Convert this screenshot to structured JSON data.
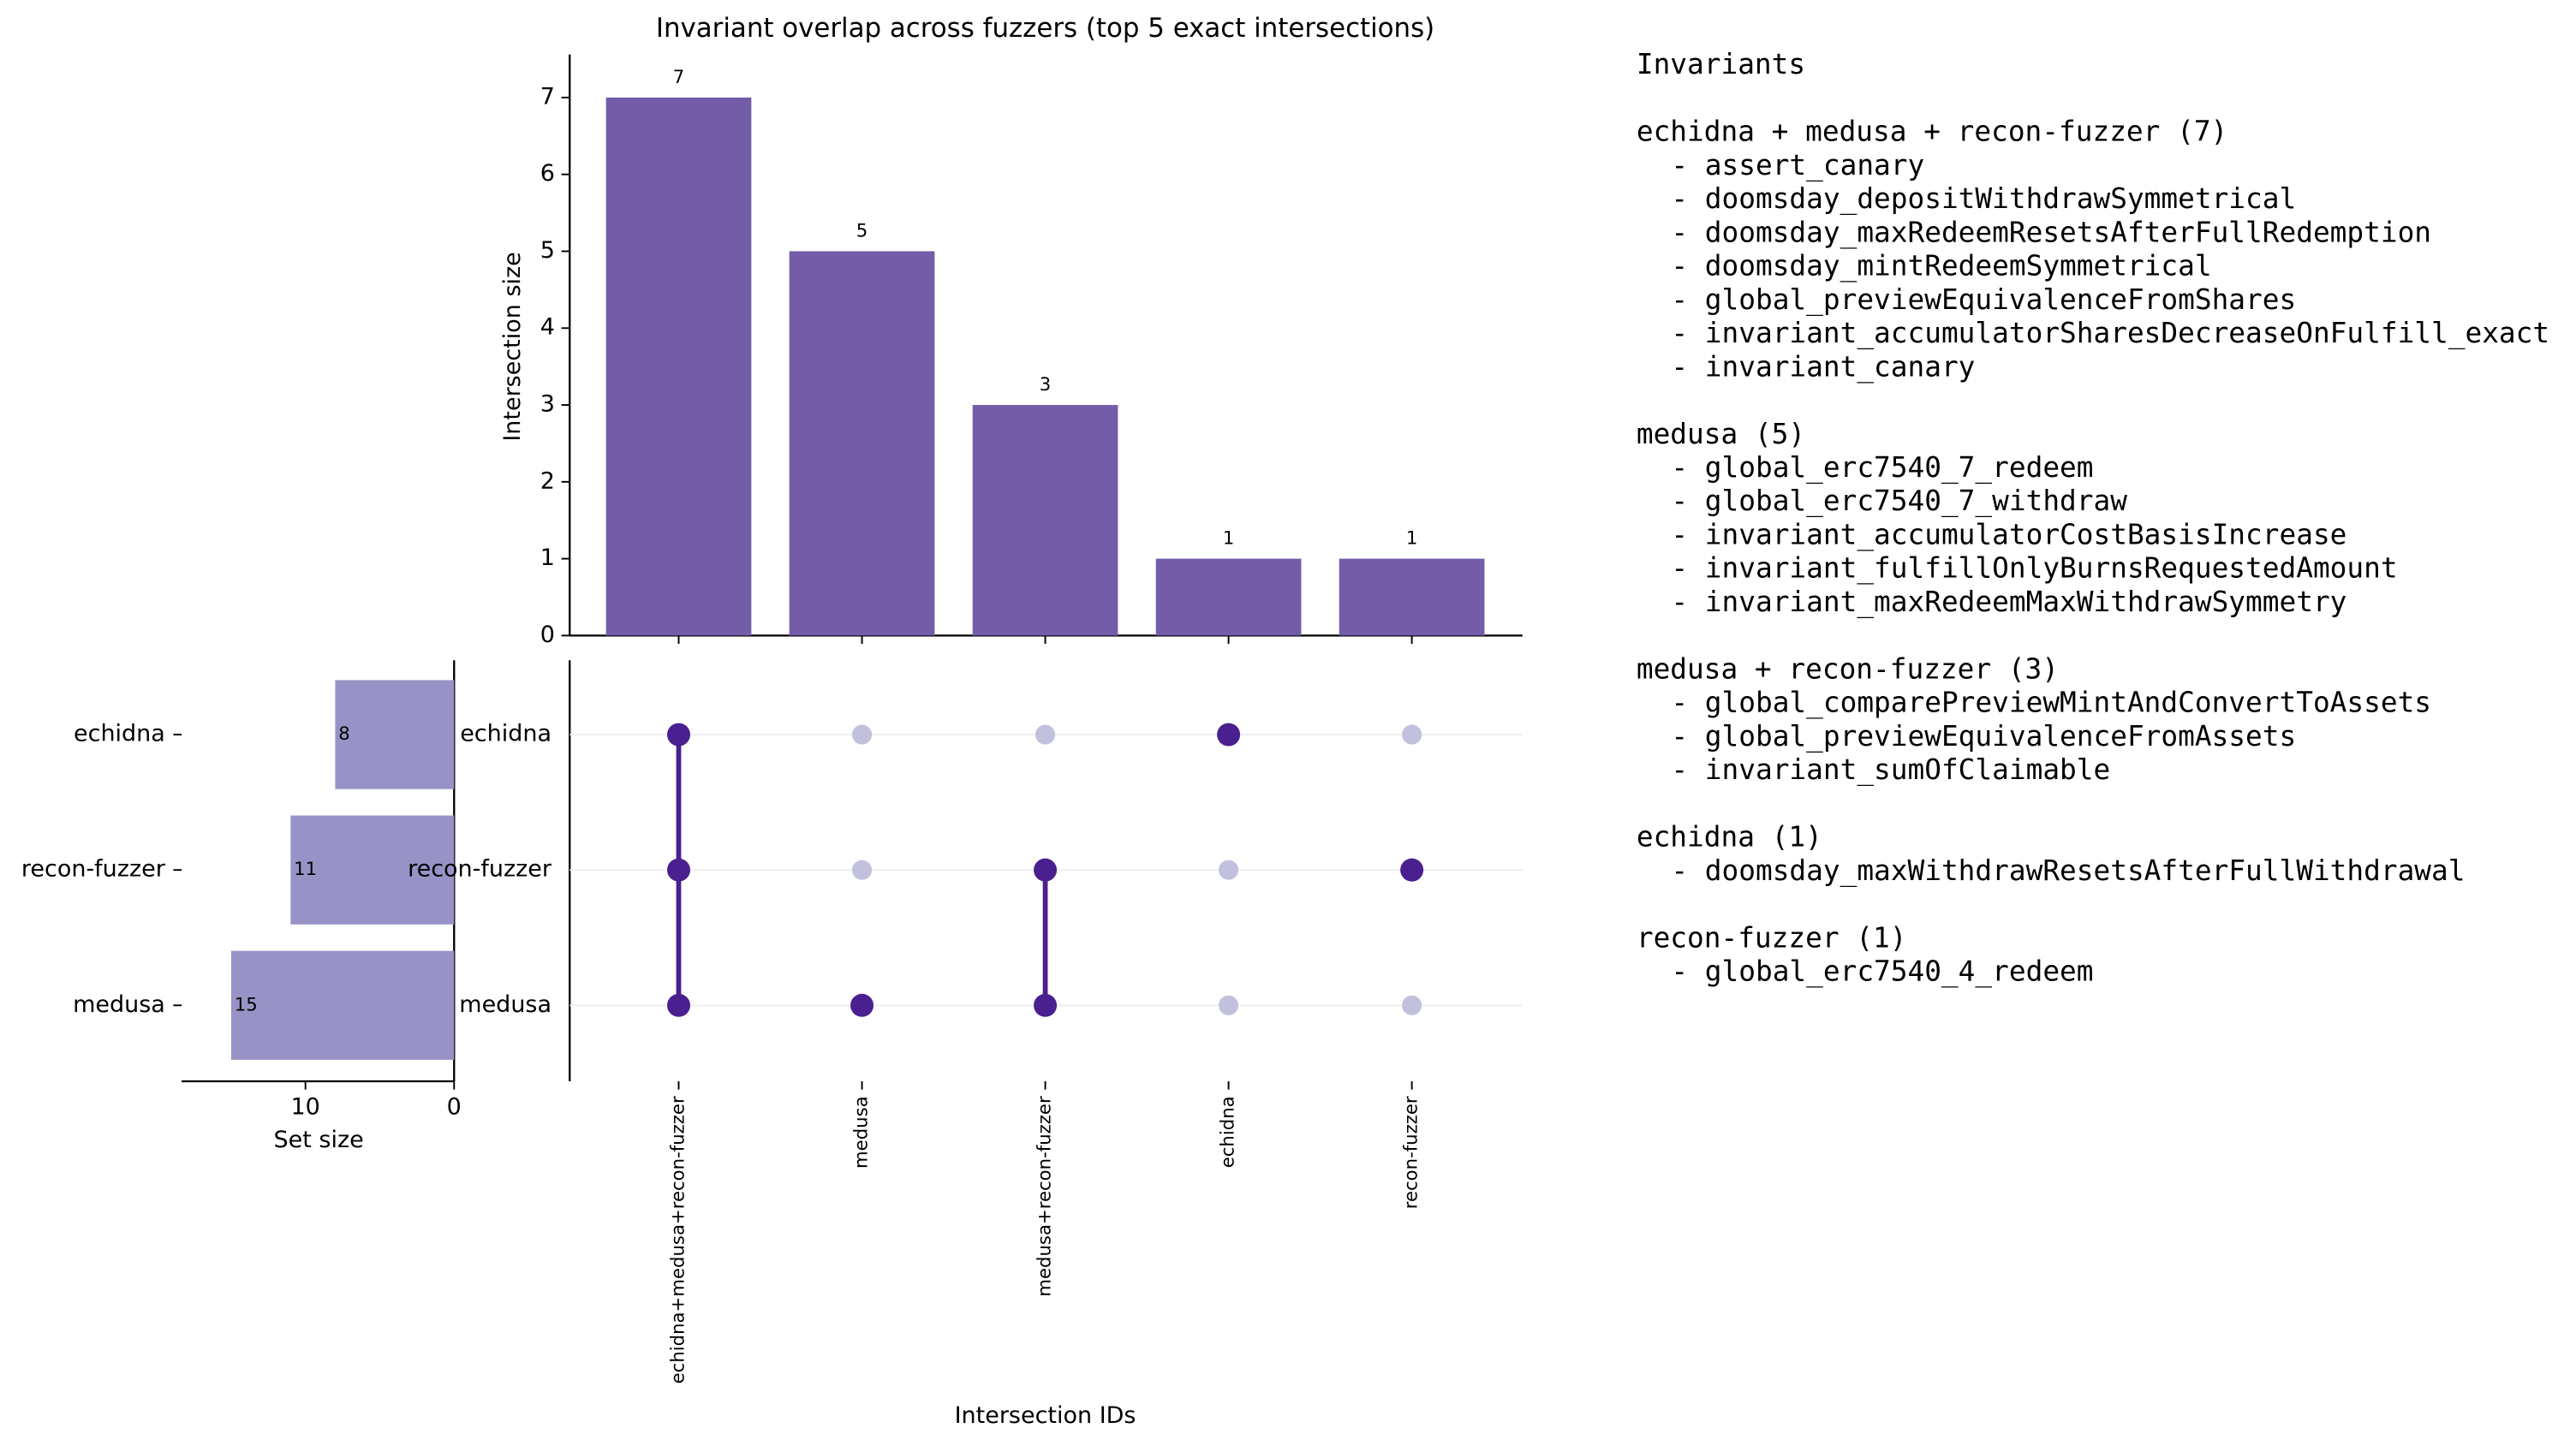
{
  "chart_data": [
    {
      "type": "bar",
      "title": "Invariant overlap across fuzzers (top 5 exact intersections)",
      "y_label": "Intersection size",
      "x_label": "Intersection IDs",
      "categories": [
        "echidna+medusa+recon-fuzzer",
        "medusa",
        "medusa+recon-fuzzer",
        "echidna",
        "recon-fuzzer"
      ],
      "values": [
        7,
        5,
        3,
        1,
        1
      ],
      "color": "#735ca8",
      "ylim": [
        0,
        7.56
      ],
      "yticks": [
        0,
        1,
        2,
        3,
        4,
        5,
        6,
        7
      ]
    },
    {
      "type": "hbar",
      "x_label": "Set size",
      "categories": [
        "echidna",
        "recon-fuzzer",
        "medusa"
      ],
      "values": [
        8,
        11,
        15
      ],
      "color": "#9893c6",
      "xlim": [
        0,
        18.33
      ],
      "xticks": [
        0,
        10
      ],
      "x_inverted": true
    },
    {
      "type": "matrix",
      "sets": [
        "echidna",
        "recon-fuzzer",
        "medusa"
      ],
      "membership": [
        [
          1,
          1,
          1
        ],
        [
          0,
          0,
          1
        ],
        [
          0,
          1,
          1
        ],
        [
          1,
          0,
          0
        ],
        [
          0,
          1,
          0
        ]
      ],
      "active_color": "#4a1f8f",
      "inactive_color": "#c2c1dd"
    }
  ],
  "invariants_panel": {
    "title": "Invariants",
    "groups": [
      {
        "heading": "echidna + medusa + recon-fuzzer (7)",
        "items": [
          "- assert_canary",
          "- doomsday_depositWithdrawSymmetrical",
          "- doomsday_maxRedeemResetsAfterFullRedemption",
          "- doomsday_mintRedeemSymmetrical",
          "- global_previewEquivalenceFromShares",
          "- invariant_accumulatorSharesDecreaseOnFulfill_exact",
          "- invariant_canary"
        ]
      },
      {
        "heading": "medusa (5)",
        "items": [
          "- global_erc7540_7_redeem",
          "- global_erc7540_7_withdraw",
          "- invariant_accumulatorCostBasisIncrease",
          "- invariant_fulfillOnlyBurnsRequestedAmount",
          "- invariant_maxRedeemMaxWithdrawSymmetry"
        ]
      },
      {
        "heading": "medusa + recon-fuzzer (3)",
        "items": [
          "- global_comparePreviewMintAndConvertToAssets",
          "- global_previewEquivalenceFromAssets",
          "- invariant_sumOfClaimable"
        ]
      },
      {
        "heading": "echidna (1)",
        "items": [
          "- doomsday_maxWithdrawResetsAfterFullWithdrawal"
        ]
      },
      {
        "heading": "recon-fuzzer (1)",
        "items": [
          "- global_erc7540_4_redeem"
        ]
      }
    ]
  }
}
